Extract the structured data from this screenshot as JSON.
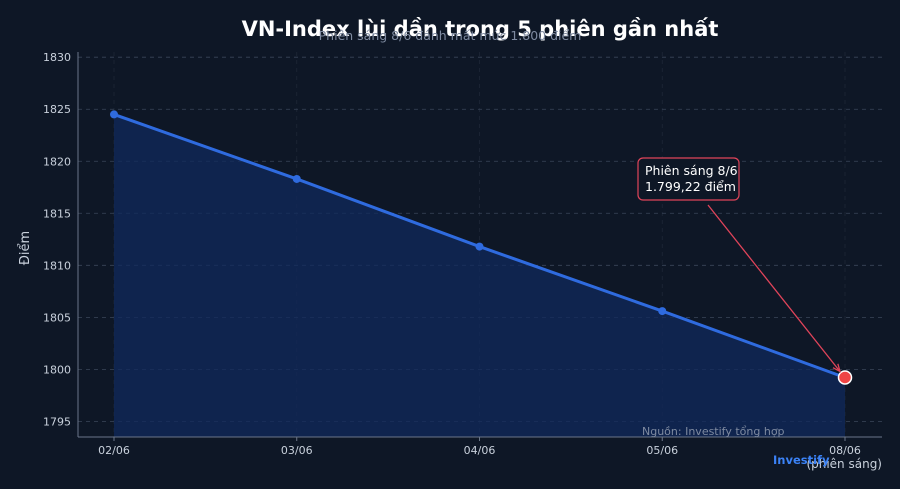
{
  "chart_data": {
    "type": "area",
    "title": "VN-Index lùi dần trong 5 phiên gần nhất",
    "subtitle": "Phiên sáng 8/6 đánh mất mức 1.800 điểm",
    "ylabel": "Điểm",
    "xlabel": "(phiên sáng)",
    "categories": [
      "02/06",
      "03/06",
      "04/06",
      "05/06",
      "08/06"
    ],
    "values": [
      1824.5,
      1818.3,
      1811.8,
      1805.6,
      1799.22
    ],
    "ylim": [
      1793.5,
      1830.5
    ],
    "yticks": [
      1795,
      1800,
      1805,
      1810,
      1815,
      1820,
      1825,
      1830
    ],
    "grid": true,
    "annotation": {
      "lines": [
        "Phiên sáng 8/6",
        "1.799,22 điểm"
      ],
      "target_index": 4
    },
    "source": "Nguồn: Investify tổng hợp",
    "brand": "Investify",
    "colors": {
      "line": "#2f6bdf",
      "fill": "#102a5c",
      "highlight": "#ef4444",
      "annotation_border": "#e0445a",
      "arrow": "#e0445a"
    }
  }
}
